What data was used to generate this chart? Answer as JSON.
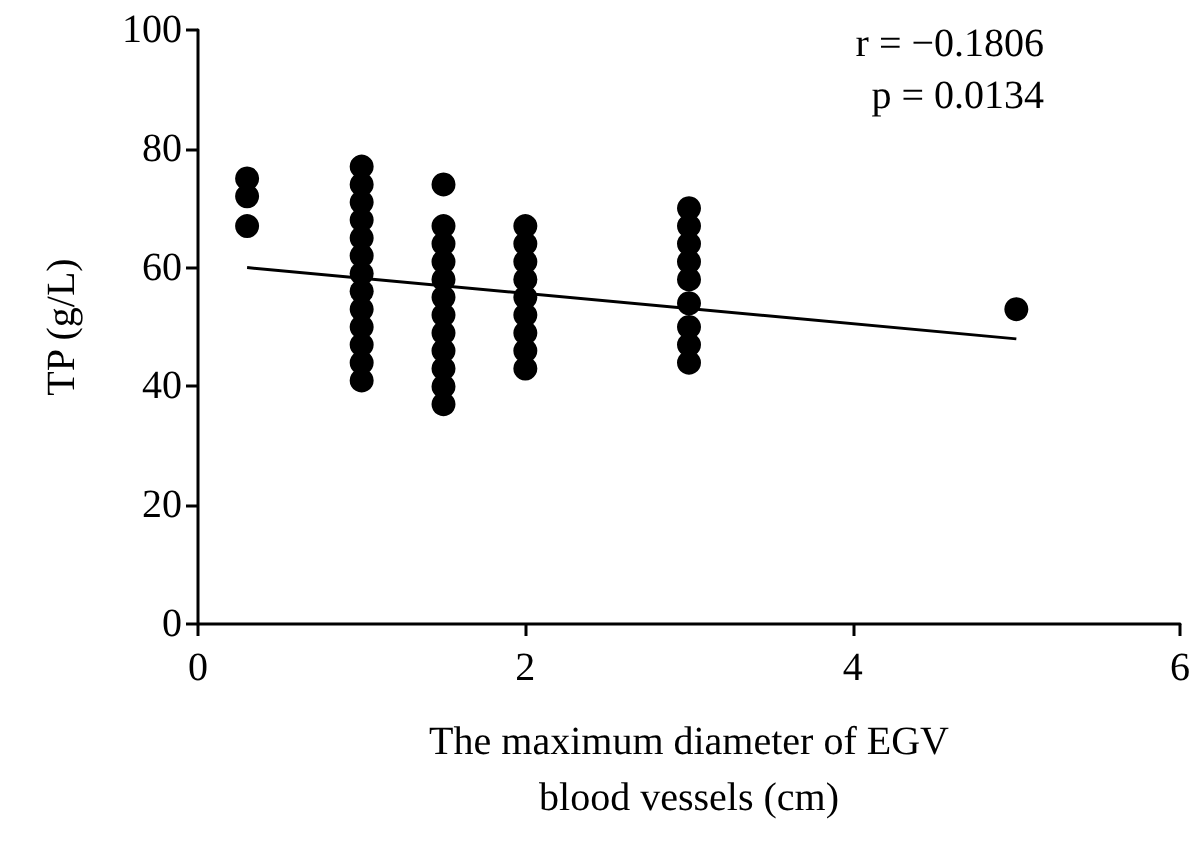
{
  "chart_data": {
    "type": "scatter",
    "xlabel": "The maximum diameter of EGV\nblood vessels (cm)",
    "ylabel": "TP (g/L)",
    "annotations": [
      "r = −0.1806",
      "p = 0.0134"
    ],
    "xlim": [
      0,
      6
    ],
    "xticks": [
      0,
      2,
      4,
      6
    ],
    "ylim": [
      0,
      100
    ],
    "yticks": [
      0,
      20,
      40,
      60,
      80,
      100
    ],
    "grid": false,
    "marker": "circle",
    "series": [
      {
        "color": "#000000",
        "x": [
          0.3,
          0.3,
          0.3,
          1,
          1,
          1,
          1,
          1,
          1,
          1,
          1,
          1,
          1,
          1,
          1,
          1,
          1.5,
          1.5,
          1.5,
          1.5,
          1.5,
          1.5,
          1.5,
          1.5,
          1.5,
          1.5,
          1.5,
          1.5,
          2,
          2,
          2,
          2,
          2,
          2,
          2,
          2,
          2,
          3,
          3,
          3,
          3,
          3,
          3,
          3,
          3,
          3,
          5
        ],
        "values": [
          75,
          72,
          67,
          41,
          44,
          47,
          50,
          53,
          56,
          59,
          62,
          65,
          68,
          71,
          74,
          77,
          37,
          40,
          43,
          46,
          49,
          52,
          55,
          58,
          61,
          64,
          67,
          74,
          43,
          46,
          49,
          52,
          55,
          58,
          61,
          64,
          67,
          44,
          47,
          50,
          54,
          58,
          61,
          64,
          67,
          70,
          53
        ]
      },
      {
        "type": "line",
        "color": "#000000",
        "marker": "none",
        "x": [
          0.3,
          5
        ],
        "values": [
          60,
          48
        ]
      }
    ]
  }
}
